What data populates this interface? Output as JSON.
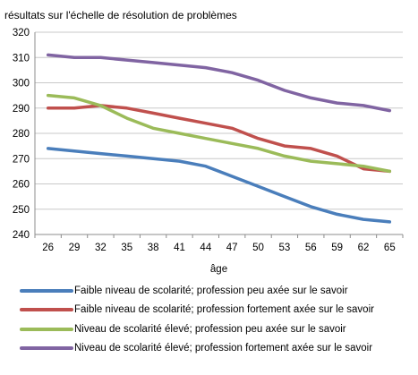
{
  "chart_data": {
    "type": "line",
    "title": "",
    "ylabel": "résultats sur l'échelle de résolution de problèmes",
    "xlabel": "âge",
    "x": [
      26,
      29,
      32,
      35,
      38,
      41,
      44,
      47,
      50,
      53,
      56,
      59,
      62,
      65
    ],
    "ylim": [
      240,
      320
    ],
    "yticks": [
      240,
      250,
      260,
      270,
      280,
      290,
      300,
      310,
      320
    ],
    "grid": "horizontal",
    "legend_placement": "bottom",
    "series": [
      {
        "name": "Faible niveau de scolarité; profession peu axée sur le savoir",
        "color": "#4A7EBB",
        "values": [
          274,
          273,
          272,
          271,
          270,
          269,
          267,
          263,
          259,
          255,
          251,
          248,
          246,
          245
        ]
      },
      {
        "name": "Faible niveau de scolarité; profession fortement axée sur le savoir",
        "color": "#C0504D",
        "values": [
          290,
          290,
          291,
          290,
          288,
          286,
          284,
          282,
          278,
          275,
          274,
          271,
          266,
          265
        ]
      },
      {
        "name": "Niveau de scolarité élevé; profession peu axée sur le savoir",
        "color": "#9BBB59",
        "values": [
          295,
          294,
          291,
          286,
          282,
          280,
          278,
          276,
          274,
          271,
          269,
          268,
          267,
          265
        ]
      },
      {
        "name": "Niveau de scolarité élevé; profession fortement axée sur le savoir",
        "color": "#8064A2",
        "values": [
          311,
          310,
          310,
          309,
          308,
          307,
          306,
          304,
          301,
          297,
          294,
          292,
          291,
          289
        ]
      }
    ]
  }
}
